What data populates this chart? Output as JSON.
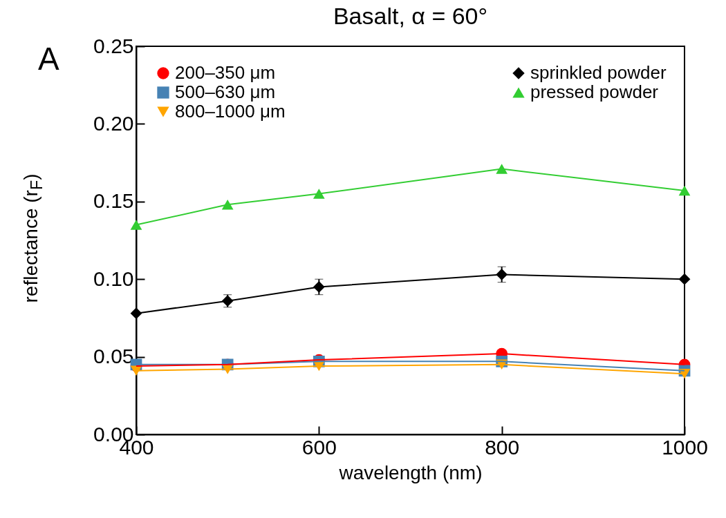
{
  "chart_data": {
    "type": "line",
    "title": "Basalt, α = 60°",
    "xlabel": "wavelength (nm)",
    "ylabel": "reflectance (r$_{F}$)",
    "annotations": [
      "A"
    ],
    "x": [
      400,
      500,
      600,
      800,
      1000
    ],
    "series": [
      {
        "name": "200–350 μm",
        "color": "#ff0000",
        "marker": "circle",
        "values": [
          0.044,
          0.045,
          0.048,
          0.052,
          0.045
        ]
      },
      {
        "name": "500–630 μm",
        "color": "#4682b4",
        "marker": "square",
        "values": [
          0.045,
          0.045,
          0.047,
          0.047,
          0.041
        ]
      },
      {
        "name": "800–1000 μm",
        "color": "#ffa500",
        "marker": "triangle-down",
        "values": [
          0.041,
          0.042,
          0.044,
          0.045,
          0.039
        ]
      },
      {
        "name": "sprinkled powder",
        "color": "#000000",
        "marker": "diamond",
        "values": [
          0.078,
          0.086,
          0.095,
          0.103,
          0.1
        ],
        "errors": [
          null,
          0.004,
          0.005,
          0.005,
          null
        ]
      },
      {
        "name": "pressed powder",
        "color": "#32cd32",
        "marker": "triangle",
        "values": [
          0.135,
          0.148,
          0.155,
          0.171,
          0.157
        ]
      }
    ],
    "xlim": [
      400,
      1000
    ],
    "xticks": [
      400,
      600,
      800,
      1000
    ],
    "legend": "top",
    "ylim": [
      0,
      0.25
    ],
    "yticks": [
      {
        "value": 0,
        "label": "0.00"
      },
      {
        "value": 0.05,
        "label": "0.05"
      },
      {
        "value": 0.1,
        "label": "0.10"
      },
      {
        "value": 0.15,
        "label": "0.15"
      },
      {
        "value": 0.2,
        "label": "0.20"
      },
      {
        "value": 0.25,
        "label": "0.25"
      }
    ],
    "grid": false
  }
}
